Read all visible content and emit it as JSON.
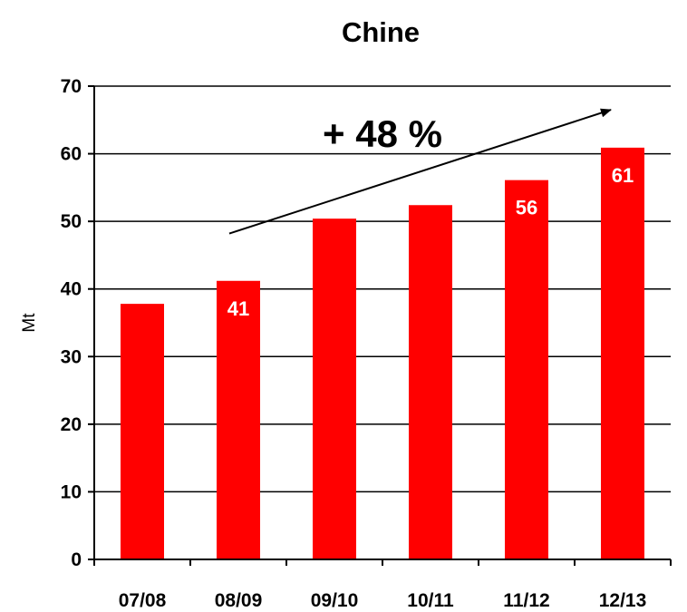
{
  "chart_data": {
    "type": "bar",
    "title": "Chine",
    "ylabel": "Mt",
    "xlabel": "",
    "categories": [
      "07/08",
      "08/09",
      "09/10",
      "10/11",
      "11/12",
      "12/13"
    ],
    "values": [
      37.8,
      41.2,
      50.4,
      52.4,
      56.1,
      60.9
    ],
    "data_labels": [
      "",
      "41",
      "",
      "",
      "56",
      "61"
    ],
    "ylim": [
      0,
      70
    ],
    "yticks": [
      0,
      10,
      20,
      30,
      40,
      50,
      60,
      70
    ],
    "grid": true,
    "bar_color": "#ff0000",
    "annotation": {
      "text": "+ 48 %",
      "arrow_from": {
        "x": "08/09",
        "y": 48.2
      },
      "arrow_to": {
        "x": "12/13",
        "y": 66.5
      }
    }
  }
}
